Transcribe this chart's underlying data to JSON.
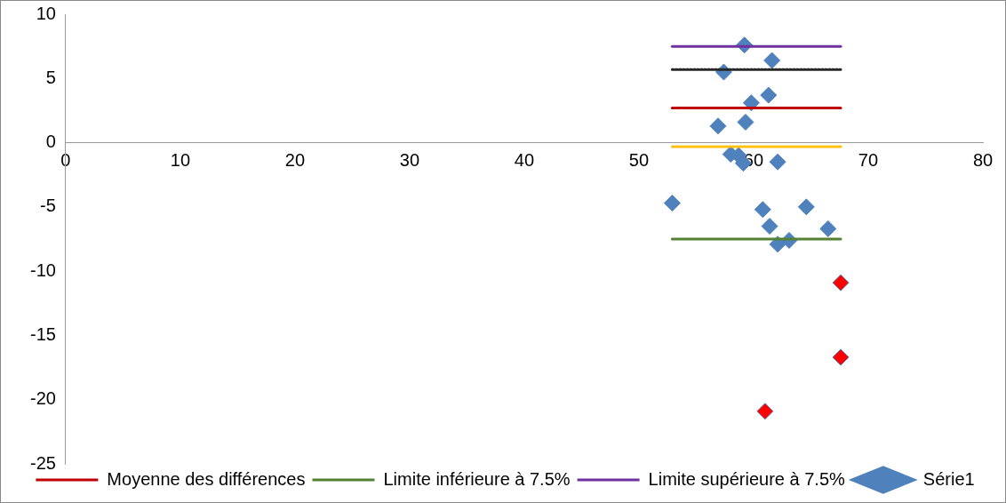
{
  "chart_data": {
    "type": "scatter",
    "xlim": [
      0,
      80
    ],
    "xticks": [
      0,
      10,
      20,
      30,
      40,
      50,
      60,
      70,
      80
    ],
    "ylim": [
      -25,
      10
    ],
    "yticks": [
      -25,
      -20,
      -15,
      -10,
      -5,
      0,
      5,
      10
    ],
    "grid": false,
    "legend": "bottom",
    "marker": "diamond",
    "series": [
      {
        "name": "Moyenne des différences",
        "type": "line",
        "color": "#c00000",
        "line_style": "solid",
        "marker": "none",
        "x": [
          52.9,
          67.6
        ],
        "values": [
          2.7,
          2.7
        ]
      },
      {
        "name": "Limite inférieure à 7.5%",
        "type": "line",
        "color": "#548235",
        "line_style": "solid",
        "marker": "none",
        "x": [
          52.9,
          67.6
        ],
        "values": [
          -7.5,
          -7.5
        ]
      },
      {
        "name": "Limite supérieure à 7.5%",
        "type": "line",
        "color": "#7030a0",
        "line_style": "solid",
        "marker": "none",
        "x": [
          52.9,
          67.6
        ],
        "values": [
          7.5,
          7.5
        ]
      },
      {
        "type": "line",
        "color": "#262626",
        "line_style": "dotted",
        "marker": "none",
        "x": [
          52.9,
          67.6
        ],
        "values": [
          5.7,
          5.7
        ]
      },
      {
        "type": "line",
        "color": "#ffc000",
        "line_style": "dotted",
        "marker": "none",
        "x": [
          52.9,
          67.6
        ],
        "values": [
          -0.3,
          -0.3
        ]
      },
      {
        "name": "Série1",
        "color": "#4f81bd",
        "x": [
          59.2,
          61.6,
          57.4,
          61.3,
          59.8,
          56.9,
          59.3,
          58.0,
          58.7,
          59.1,
          62.1,
          52.9,
          60.8,
          64.6,
          61.4,
          66.5,
          62.1,
          63.1,
          67.6,
          67.6,
          61.0
        ],
        "values": [
          7.6,
          6.4,
          5.5,
          3.7,
          3.1,
          1.3,
          1.6,
          -0.9,
          -1.0,
          -1.6,
          -1.5,
          -4.7,
          -5.2,
          -5.0,
          -6.5,
          -6.7,
          -7.9,
          -7.6,
          -10.9,
          -16.7,
          -20.9
        ],
        "colors": [
          "#4f81bd",
          "#4f81bd",
          "#4f81bd",
          "#4f81bd",
          "#4f81bd",
          "#4f81bd",
          "#4f81bd",
          "#4f81bd",
          "#4f81bd",
          "#4f81bd",
          "#4f81bd",
          "#4f81bd",
          "#4f81bd",
          "#4f81bd",
          "#4f81bd",
          "#4f81bd",
          "#4f81bd",
          "#4f81bd",
          "#ff0000",
          "#ff0000",
          "#ff0000"
        ]
      }
    ]
  }
}
